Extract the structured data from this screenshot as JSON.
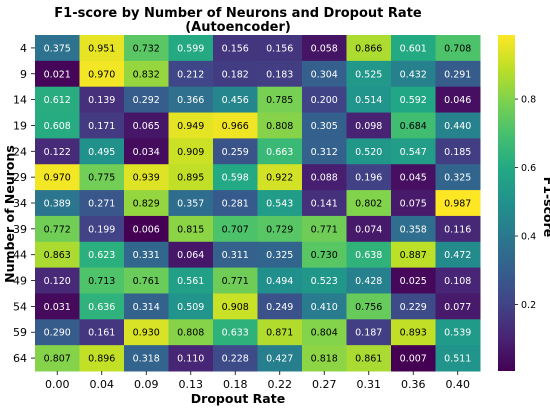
{
  "chart_data": {
    "type": "heatmap",
    "title": "F1-score by Number of Neurons and Dropout Rate",
    "subtitle": "(Autoencoder)",
    "xlabel": "Dropout Rate",
    "ylabel": "Number of Neurons",
    "colorbar_label": "F1-score",
    "colormap": "viridis",
    "vmin": 0.006,
    "vmax": 0.987,
    "colorbar_ticks": [
      0.2,
      0.4,
      0.6,
      0.8
    ],
    "x": [
      "0.00",
      "0.04",
      "0.09",
      "0.13",
      "0.18",
      "0.22",
      "0.27",
      "0.31",
      "0.36",
      "0.40"
    ],
    "y": [
      "4",
      "9",
      "14",
      "19",
      "24",
      "29",
      "34",
      "39",
      "44",
      "49",
      "54",
      "59",
      "64"
    ],
    "values": [
      [
        0.375,
        0.951,
        0.732,
        0.599,
        0.156,
        0.156,
        0.058,
        0.866,
        0.601,
        0.708
      ],
      [
        0.021,
        0.97,
        0.832,
        0.212,
        0.182,
        0.183,
        0.304,
        0.525,
        0.432,
        0.291
      ],
      [
        0.612,
        0.139,
        0.292,
        0.366,
        0.456,
        0.785,
        0.2,
        0.514,
        0.592,
        0.046
      ],
      [
        0.608,
        0.171,
        0.065,
        0.949,
        0.966,
        0.808,
        0.305,
        0.098,
        0.684,
        0.44
      ],
      [
        0.122,
        0.495,
        0.034,
        0.909,
        0.259,
        0.663,
        0.312,
        0.52,
        0.547,
        0.185
      ],
      [
        0.97,
        0.775,
        0.939,
        0.895,
        0.598,
        0.922,
        0.088,
        0.196,
        0.045,
        0.325
      ],
      [
        0.389,
        0.271,
        0.829,
        0.357,
        0.281,
        0.543,
        0.141,
        0.802,
        0.075,
        0.987
      ],
      [
        0.772,
        0.199,
        0.006,
        0.815,
        0.707,
        0.729,
        0.771,
        0.074,
        0.358,
        0.116
      ],
      [
        0.863,
        0.623,
        0.331,
        0.064,
        0.311,
        0.325,
        0.73,
        0.638,
        0.887,
        0.472
      ],
      [
        0.12,
        0.713,
        0.761,
        0.561,
        0.771,
        0.494,
        0.523,
        0.428,
        0.025,
        0.108
      ],
      [
        0.031,
        0.636,
        0.314,
        0.509,
        0.908,
        0.249,
        0.41,
        0.756,
        0.229,
        0.077
      ],
      [
        0.29,
        0.161,
        0.93,
        0.808,
        0.633,
        0.871,
        0.804,
        0.187,
        0.893,
        0.539
      ],
      [
        0.807,
        0.896,
        0.318,
        0.11,
        0.228,
        0.427,
        0.818,
        0.861,
        0.007,
        0.511
      ]
    ]
  }
}
